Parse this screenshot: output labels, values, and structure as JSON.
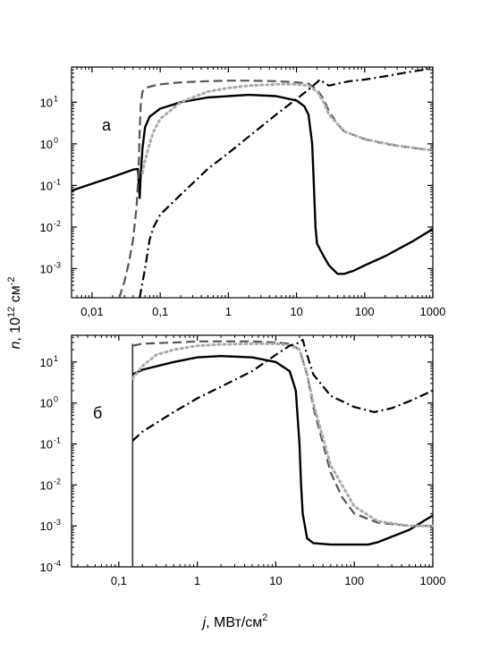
{
  "ylabel": {
    "italic": "n",
    "rest": ", 10",
    "sup": "12",
    "unit": " см",
    "unit_sup": "-2"
  },
  "xlabel": {
    "italic": "j",
    "rest": ", МВт/см",
    "sup": "2"
  },
  "chart_data": [
    {
      "type": "line",
      "panel_label": "а",
      "x_scale": "log",
      "y_scale": "log",
      "xlim": [
        0.005,
        1000
      ],
      "ylim": [
        0.0002,
        70
      ],
      "x_ticks": [
        {
          "v": 0.01,
          "label": "0,01"
        },
        {
          "v": 0.1,
          "label": "0,1"
        },
        {
          "v": 1,
          "label": "1"
        },
        {
          "v": 10,
          "label": "10"
        },
        {
          "v": 100,
          "label": "100"
        },
        {
          "v": 1000,
          "label": "1000"
        }
      ],
      "y_ticks": [
        {
          "v": 0.001,
          "m": "10",
          "e": "-3"
        },
        {
          "v": 0.01,
          "m": "10",
          "e": "-2"
        },
        {
          "v": 0.1,
          "m": "10",
          "e": "-1"
        },
        {
          "v": 1,
          "m": "10",
          "e": "0"
        },
        {
          "v": 10,
          "m": "10",
          "e": "1"
        }
      ],
      "grid": false,
      "series": [
        {
          "style": "solid",
          "color": "#000000",
          "points": [
            [
              0.005,
              0.075
            ],
            [
              0.01,
              0.11
            ],
            [
              0.02,
              0.16
            ],
            [
              0.04,
              0.24
            ],
            [
              0.047,
              0.25
            ],
            [
              0.05,
              0.05
            ],
            [
              0.052,
              0.2
            ],
            [
              0.055,
              0.8
            ],
            [
              0.06,
              2.5
            ],
            [
              0.07,
              4.5
            ],
            [
              0.1,
              7
            ],
            [
              0.2,
              10
            ],
            [
              0.5,
              13
            ],
            [
              1,
              14
            ],
            [
              2,
              15
            ],
            [
              5,
              14
            ],
            [
              10,
              11
            ],
            [
              13,
              8
            ],
            [
              15,
              5
            ],
            [
              17,
              1
            ],
            [
              18,
              0.1
            ],
            [
              19,
              0.01
            ],
            [
              20,
              0.004
            ],
            [
              25,
              0.002
            ],
            [
              30,
              0.0012
            ],
            [
              40,
              0.00075
            ],
            [
              50,
              0.00075
            ],
            [
              70,
              0.0009
            ],
            [
              100,
              0.0012
            ],
            [
              200,
              0.002
            ],
            [
              500,
              0.0045
            ],
            [
              1000,
              0.009
            ]
          ]
        },
        {
          "style": "dashed",
          "color": "#555555",
          "points": [
            [
              0.025,
              0.0002
            ],
            [
              0.03,
              0.0005
            ],
            [
              0.035,
              0.0015
            ],
            [
              0.04,
              0.005
            ],
            [
              0.045,
              0.03
            ],
            [
              0.048,
              0.2
            ],
            [
              0.05,
              2
            ],
            [
              0.052,
              10
            ],
            [
              0.055,
              18
            ],
            [
              0.06,
              22
            ],
            [
              0.08,
              25
            ],
            [
              0.1,
              27
            ],
            [
              0.2,
              30
            ],
            [
              0.5,
              32
            ],
            [
              1,
              33
            ],
            [
              2,
              33
            ],
            [
              5,
              32
            ],
            [
              10,
              30
            ],
            [
              15,
              28
            ],
            [
              20,
              20
            ],
            [
              25,
              12
            ],
            [
              30,
              6
            ],
            [
              40,
              3
            ],
            [
              50,
              2
            ],
            [
              100,
              1.3
            ],
            [
              200,
              1
            ],
            [
              500,
              0.8
            ],
            [
              1000,
              0.7
            ]
          ]
        },
        {
          "style": "dotted",
          "color": "#aaaaaa",
          "points": [
            [
              0.055,
              0.2
            ],
            [
              0.06,
              0.4
            ],
            [
              0.07,
              1
            ],
            [
              0.08,
              2
            ],
            [
              0.1,
              4
            ],
            [
              0.2,
              10
            ],
            [
              0.5,
              18
            ],
            [
              1,
              22
            ],
            [
              2,
              25
            ],
            [
              5,
              27
            ],
            [
              10,
              27
            ],
            [
              15,
              25
            ],
            [
              20,
              18
            ],
            [
              25,
              10
            ],
            [
              30,
              5
            ],
            [
              50,
              2
            ],
            [
              100,
              1.3
            ],
            [
              300,
              0.9
            ],
            [
              1000,
              0.7
            ]
          ]
        },
        {
          "style": "dashdot",
          "color": "#000000",
          "points": [
            [
              0.05,
              0.0002
            ],
            [
              0.06,
              0.001
            ],
            [
              0.07,
              0.005
            ],
            [
              0.08,
              0.01
            ],
            [
              0.1,
              0.02
            ],
            [
              0.2,
              0.06
            ],
            [
              0.5,
              0.25
            ],
            [
              1,
              0.6
            ],
            [
              2,
              1.5
            ],
            [
              5,
              5
            ],
            [
              10,
              12
            ],
            [
              15,
              20
            ],
            [
              20,
              30
            ],
            [
              22,
              35
            ],
            [
              25,
              30
            ],
            [
              30,
              25
            ],
            [
              40,
              28
            ],
            [
              60,
              32
            ],
            [
              100,
              35
            ],
            [
              200,
              42
            ],
            [
              500,
              55
            ],
            [
              1000,
              65
            ]
          ]
        }
      ]
    },
    {
      "type": "line",
      "panel_label": "б",
      "x_scale": "log",
      "y_scale": "log",
      "xlim": [
        0.025,
        1000
      ],
      "ylim": [
        0.0001,
        45
      ],
      "x_ticks": [
        {
          "v": 0.1,
          "label": "0,1"
        },
        {
          "v": 1,
          "label": "1"
        },
        {
          "v": 10,
          "label": "10"
        },
        {
          "v": 100,
          "label": "100"
        },
        {
          "v": 1000,
          "label": "1000"
        }
      ],
      "y_ticks": [
        {
          "v": 0.0001,
          "m": "10",
          "e": "-4"
        },
        {
          "v": 0.001,
          "m": "10",
          "e": "-3"
        },
        {
          "v": 0.01,
          "m": "10",
          "e": "-2"
        },
        {
          "v": 0.1,
          "m": "10",
          "e": "-1"
        },
        {
          "v": 1,
          "m": "10",
          "e": "0"
        },
        {
          "v": 10,
          "m": "10",
          "e": "1"
        }
      ],
      "grid": false,
      "series": [
        {
          "style": "vertical",
          "color": "#333333",
          "points": [
            [
              0.15,
              0.0001
            ],
            [
              0.15,
              28
            ]
          ]
        },
        {
          "style": "solid",
          "color": "#000000",
          "points": [
            [
              0.15,
              5
            ],
            [
              0.2,
              6.5
            ],
            [
              0.5,
              10
            ],
            [
              1,
              13
            ],
            [
              2,
              14
            ],
            [
              5,
              13
            ],
            [
              10,
              10
            ],
            [
              15,
              6
            ],
            [
              18,
              2
            ],
            [
              20,
              0.1
            ],
            [
              21,
              0.01
            ],
            [
              22,
              0.002
            ],
            [
              25,
              0.0005
            ],
            [
              30,
              0.00038
            ],
            [
              50,
              0.00035
            ],
            [
              100,
              0.00035
            ],
            [
              150,
              0.00035
            ],
            [
              200,
              0.0004
            ],
            [
              500,
              0.0008
            ],
            [
              1000,
              0.0018
            ]
          ]
        },
        {
          "style": "dashed",
          "color": "#555555",
          "points": [
            [
              0.15,
              25
            ],
            [
              0.2,
              28
            ],
            [
              0.5,
              30
            ],
            [
              1,
              32
            ],
            [
              2,
              32
            ],
            [
              5,
              32
            ],
            [
              10,
              30
            ],
            [
              15,
              28
            ],
            [
              20,
              20
            ],
            [
              25,
              5
            ],
            [
              30,
              0.8
            ],
            [
              40,
              0.1
            ],
            [
              50,
              0.02
            ],
            [
              70,
              0.005
            ],
            [
              100,
              0.002
            ],
            [
              200,
              0.0012
            ],
            [
              500,
              0.001
            ],
            [
              1000,
              0.001
            ]
          ]
        },
        {
          "style": "dotted",
          "color": "#aaaaaa",
          "points": [
            [
              0.15,
              4
            ],
            [
              0.2,
              8
            ],
            [
              0.3,
              15
            ],
            [
              0.5,
              20
            ],
            [
              1,
              25
            ],
            [
              2,
              27
            ],
            [
              5,
              28
            ],
            [
              10,
              28
            ],
            [
              15,
              26
            ],
            [
              20,
              20
            ],
            [
              25,
              5
            ],
            [
              30,
              1
            ],
            [
              50,
              0.03
            ],
            [
              100,
              0.003
            ],
            [
              200,
              0.0013
            ],
            [
              500,
              0.001
            ],
            [
              1000,
              0.001
            ]
          ]
        },
        {
          "style": "dashdot",
          "color": "#000000",
          "points": [
            [
              0.15,
              0.12
            ],
            [
              0.2,
              0.2
            ],
            [
              0.5,
              0.6
            ],
            [
              1,
              1.3
            ],
            [
              2,
              2.5
            ],
            [
              5,
              6
            ],
            [
              10,
              15
            ],
            [
              15,
              25
            ],
            [
              20,
              30
            ],
            [
              22,
              35
            ],
            [
              25,
              15
            ],
            [
              30,
              5
            ],
            [
              50,
              1.5
            ],
            [
              100,
              0.8
            ],
            [
              180,
              0.6
            ],
            [
              300,
              0.75
            ],
            [
              500,
              1.1
            ],
            [
              1000,
              2
            ]
          ]
        }
      ]
    }
  ]
}
